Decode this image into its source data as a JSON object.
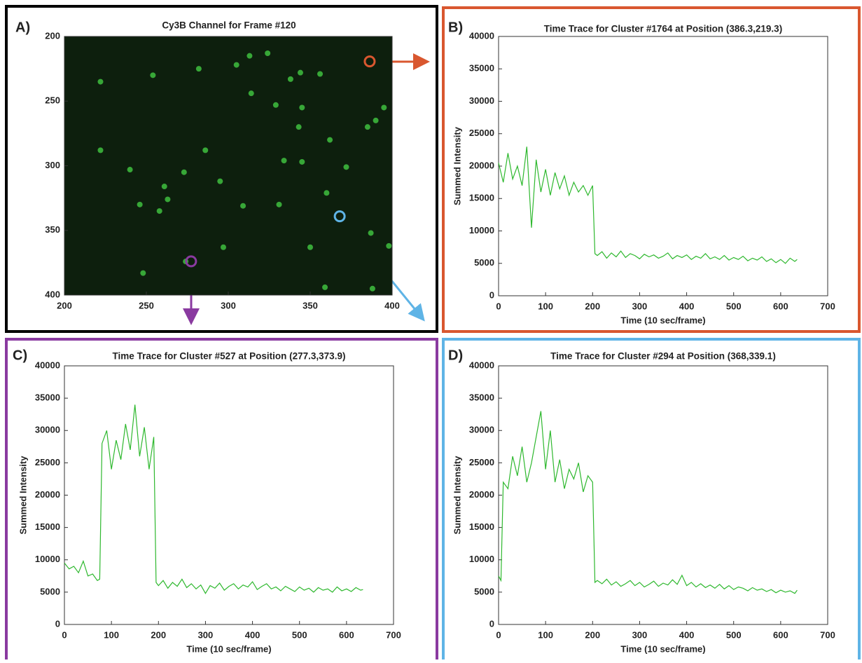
{
  "chart_data": [
    {
      "type": "scatter",
      "panel_label": "A)",
      "title": "Cy3B Channel for Frame #120",
      "xlim": [
        200,
        400
      ],
      "ylim": [
        400,
        200
      ],
      "xticks": [
        200,
        250,
        300,
        350,
        400
      ],
      "yticks": [
        200,
        250,
        300,
        350,
        400
      ],
      "background": "#0d1f0d",
      "color": "#3fbf3f",
      "x": [
        222,
        240,
        246,
        248,
        254,
        261,
        263,
        273,
        282,
        286,
        295,
        305,
        309,
        313,
        324,
        329,
        331,
        334,
        338,
        344,
        345,
        345,
        356,
        359,
        360,
        362,
        372,
        385,
        387,
        388,
        390,
        395,
        398,
        297,
        350,
        274,
        314,
        258,
        343,
        222
      ],
      "values": [
        235,
        303,
        330,
        383,
        230,
        316,
        326,
        305,
        225,
        288,
        312,
        222,
        331,
        215,
        213,
        253,
        330,
        296,
        233,
        228,
        297,
        255,
        229,
        394,
        321,
        280,
        301,
        270,
        352,
        395,
        265,
        255,
        362,
        363,
        363,
        374,
        244,
        335,
        270,
        288
      ],
      "markers": [
        {
          "x": 386.3,
          "y": 219.3,
          "color": "#d9572f"
        },
        {
          "x": 277.3,
          "y": 373.9,
          "color": "#8a3aa0"
        },
        {
          "x": 368,
          "y": 339.1,
          "color": "#5fb4e6"
        }
      ]
    },
    {
      "type": "line",
      "panel_label": "B)",
      "title": "Time Trace for Cluster #1764 at Position (386.3,219.3)",
      "x_label": "Time (10 sec/frame)",
      "y_label": "Summed Intensity",
      "xlim": [
        0,
        700
      ],
      "ylim": [
        0,
        40000
      ],
      "xticks": [
        0,
        100,
        200,
        300,
        400,
        500,
        600,
        700
      ],
      "yticks": [
        0,
        5000,
        10000,
        15000,
        20000,
        25000,
        30000,
        35000,
        40000
      ],
      "series": [
        {
          "color": "#2eb82e",
          "x": [
            0,
            10,
            20,
            30,
            40,
            50,
            60,
            70,
            80,
            90,
            100,
            110,
            120,
            130,
            140,
            150,
            160,
            170,
            180,
            190,
            200,
            205,
            210,
            220,
            230,
            240,
            250,
            260,
            270,
            280,
            290,
            300,
            310,
            320,
            330,
            340,
            350,
            360,
            370,
            380,
            390,
            400,
            410,
            420,
            430,
            440,
            450,
            460,
            470,
            480,
            490,
            500,
            510,
            520,
            530,
            540,
            550,
            560,
            570,
            580,
            590,
            600,
            610,
            620,
            630,
            635
          ],
          "values": [
            20500,
            17500,
            22000,
            18000,
            20000,
            17000,
            23000,
            10500,
            21000,
            16000,
            19500,
            15500,
            19000,
            16500,
            18500,
            15500,
            17500,
            16000,
            17000,
            15500,
            17000,
            6500,
            6200,
            6800,
            5800,
            6600,
            6000,
            6900,
            5900,
            6500,
            6200,
            5700,
            6400,
            6000,
            6300,
            5800,
            6100,
            6600,
            5700,
            6200,
            5900,
            6300,
            5600,
            6100,
            5800,
            6500,
            5700,
            6000,
            5600,
            6200,
            5500,
            5900,
            5600,
            6100,
            5400,
            5800,
            5500,
            6000,
            5300,
            5700,
            5100,
            5600,
            5000,
            5800,
            5300,
            5600
          ]
        }
      ]
    },
    {
      "type": "line",
      "panel_label": "C)",
      "title": "Time Trace for Cluster #527 at Position (277.3,373.9)",
      "x_label": "Time (10 sec/frame)",
      "y_label": "Summed Intensity",
      "xlim": [
        0,
        700
      ],
      "ylim": [
        0,
        40000
      ],
      "xticks": [
        0,
        100,
        200,
        300,
        400,
        500,
        600,
        700
      ],
      "yticks": [
        0,
        5000,
        10000,
        15000,
        20000,
        25000,
        30000,
        35000,
        40000
      ],
      "series": [
        {
          "color": "#2eb82e",
          "x": [
            0,
            10,
            20,
            30,
            40,
            50,
            60,
            70,
            75,
            80,
            90,
            100,
            110,
            120,
            130,
            140,
            150,
            160,
            170,
            180,
            190,
            195,
            200,
            210,
            220,
            230,
            240,
            250,
            260,
            270,
            280,
            290,
            300,
            310,
            320,
            330,
            340,
            350,
            360,
            370,
            380,
            390,
            400,
            410,
            420,
            430,
            440,
            450,
            460,
            470,
            480,
            490,
            500,
            510,
            520,
            530,
            540,
            550,
            560,
            570,
            580,
            590,
            600,
            610,
            620,
            630,
            635
          ],
          "values": [
            9500,
            8600,
            9000,
            8000,
            9800,
            7500,
            7800,
            6800,
            7000,
            28000,
            30000,
            24000,
            28500,
            25500,
            31000,
            27000,
            34000,
            26000,
            30500,
            24000,
            29000,
            6500,
            6000,
            6800,
            5600,
            6500,
            5900,
            7000,
            5700,
            6300,
            5500,
            6100,
            4800,
            6000,
            5600,
            6400,
            5300,
            5900,
            6300,
            5500,
            6100,
            5800,
            6600,
            5400,
            5900,
            6300,
            5500,
            5800,
            5200,
            5900,
            5500,
            5100,
            5800,
            5300,
            5600,
            5000,
            5700,
            5300,
            5500,
            5000,
            5800,
            5200,
            5500,
            5100,
            5700,
            5300,
            5400
          ]
        }
      ]
    },
    {
      "type": "line",
      "panel_label": "D)",
      "title": "Time Trace for Cluster #294 at Position (368,339.1)",
      "x_label": "Time (10 sec/frame)",
      "y_label": "Summed Intensity",
      "xlim": [
        0,
        700
      ],
      "ylim": [
        0,
        40000
      ],
      "xticks": [
        0,
        100,
        200,
        300,
        400,
        500,
        600,
        700
      ],
      "yticks": [
        0,
        5000,
        10000,
        15000,
        20000,
        25000,
        30000,
        35000,
        40000
      ],
      "series": [
        {
          "color": "#2eb82e",
          "x": [
            0,
            5,
            10,
            20,
            30,
            40,
            50,
            60,
            70,
            80,
            90,
            100,
            110,
            120,
            130,
            140,
            150,
            160,
            170,
            180,
            190,
            200,
            205,
            210,
            220,
            230,
            240,
            250,
            260,
            270,
            280,
            290,
            300,
            310,
            320,
            330,
            340,
            350,
            360,
            370,
            380,
            390,
            400,
            410,
            420,
            430,
            440,
            450,
            460,
            470,
            480,
            490,
            500,
            510,
            520,
            530,
            540,
            550,
            560,
            570,
            580,
            590,
            600,
            610,
            620,
            630,
            635
          ],
          "values": [
            7500,
            6800,
            22000,
            21000,
            26000,
            23000,
            27500,
            22000,
            25000,
            29000,
            33000,
            24000,
            30000,
            22000,
            25500,
            21000,
            24000,
            22500,
            25000,
            20500,
            23000,
            22000,
            6500,
            6800,
            6300,
            7000,
            6100,
            6600,
            5900,
            6300,
            6800,
            6000,
            6500,
            5800,
            6200,
            6700,
            5900,
            6400,
            6100,
            6900,
            6200,
            7600,
            6000,
            6500,
            5800,
            6300,
            5700,
            6100,
            5600,
            6200,
            5500,
            6000,
            5400,
            5800,
            5600,
            5200,
            5700,
            5300,
            5500,
            5100,
            5400,
            4900,
            5300,
            5000,
            5200,
            4800,
            5300
          ]
        }
      ]
    }
  ]
}
